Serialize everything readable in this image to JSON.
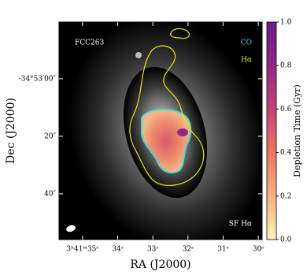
{
  "chart_data": {
    "type": "image",
    "annotations": {
      "object": "FCC263",
      "co": "CO",
      "halpha": "Hα",
      "sf": "SF Hα"
    },
    "xlabel": "RA (J2000)",
    "ylabel": "Dec (J2000)",
    "xlim": [
      35.67,
      29.89
    ],
    "xticks": [
      {
        "value": 35,
        "label": "3ʰ41ᵐ35ˢ"
      },
      {
        "value": 34,
        "label": "34ˢ"
      },
      {
        "value": 33,
        "label": "33ˢ"
      },
      {
        "value": 32,
        "label": "32ˢ"
      },
      {
        "value": 31,
        "label": "31ˢ"
      },
      {
        "value": 30,
        "label": "30ˢ"
      }
    ],
    "ylim": [
      -19.7,
      55.9
    ],
    "yticks": [
      {
        "value": 0,
        "label": "-34°53′00″"
      },
      {
        "value": 20,
        "label": "20″"
      },
      {
        "value": 40,
        "label": "40″"
      }
    ],
    "colorbar": {
      "label": "Depletion Time (Gyr)",
      "lim": [
        0,
        1
      ],
      "ticks": [
        {
          "value": 0,
          "label": "0.0"
        },
        0.2,
        0.4,
        0.6,
        0.8,
        {
          "value": 1,
          "label": "1.0"
        }
      ],
      "colormap": [
        "#fcf4b8",
        "#f9b27a",
        "#ef7564",
        "#c64374",
        "#8f2a86",
        "#6a1b8a"
      ]
    }
  }
}
